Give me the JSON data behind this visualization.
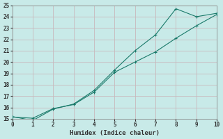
{
  "line1_x": [
    0,
    1,
    2,
    3,
    4,
    5,
    6,
    7,
    8,
    9,
    10
  ],
  "line1_y": [
    15.2,
    14.85,
    15.85,
    16.3,
    17.5,
    19.3,
    21.0,
    22.4,
    24.7,
    24.0,
    24.3
  ],
  "line2_x": [
    0,
    1,
    2,
    3,
    4,
    5,
    6,
    7,
    8,
    9,
    10
  ],
  "line2_y": [
    15.15,
    15.05,
    15.9,
    16.25,
    17.35,
    19.1,
    20.0,
    20.9,
    22.1,
    23.2,
    24.2
  ],
  "line_color": "#1a7a6a",
  "bg_color": "#c8eae8",
  "grid_color_major": "#b0c8c4",
  "grid_color_minor": "#daecea",
  "xlabel": "Humidex (Indice chaleur)",
  "xlim": [
    0,
    10
  ],
  "ylim": [
    15,
    25
  ],
  "xticks": [
    0,
    1,
    2,
    3,
    4,
    5,
    6,
    7,
    8,
    9,
    10
  ],
  "yticks": [
    15,
    16,
    17,
    18,
    19,
    20,
    21,
    22,
    23,
    24,
    25
  ],
  "xlabel_fontsize": 6.5,
  "tick_fontsize": 5.5
}
